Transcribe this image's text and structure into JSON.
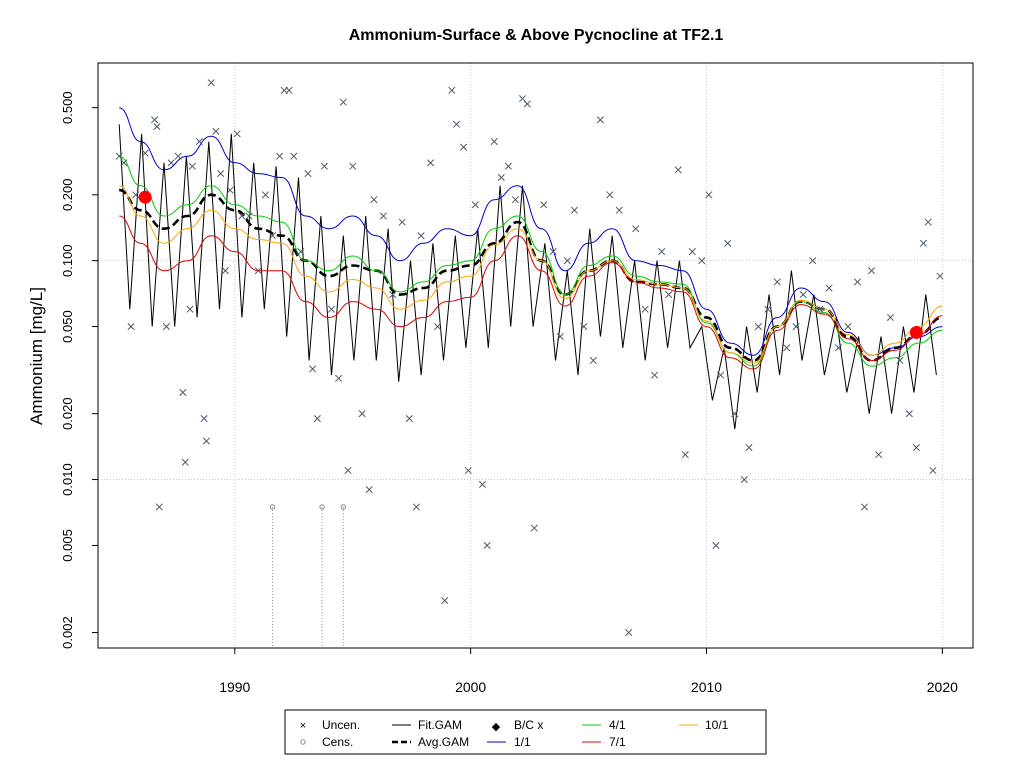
{
  "chart_data": {
    "type": "scatter",
    "title": "Ammonium-Surface & Above Pycnocline at TF2.1",
    "xlabel": "",
    "ylabel": "Ammonium [mg/L]",
    "x_ticks": [
      1990,
      2000,
      2010,
      2020
    ],
    "y_ticks": [
      "0.002",
      "0.005",
      "0.010",
      "0.020",
      "0.050",
      "0.100",
      "0.200",
      "0.500"
    ],
    "y_tick_values": [
      0.002,
      0.005,
      0.01,
      0.02,
      0.05,
      0.1,
      0.2,
      0.5
    ],
    "xlim": [
      1984.2,
      2021.3
    ],
    "ylim": [
      0.0017,
      0.8
    ],
    "y_scale": "log",
    "grid": true,
    "colors": {
      "uncen": "#4d5a6b",
      "cens": "#8a8a8a",
      "fit_gam": "#000000",
      "avg_gam": "#000000",
      "bc": "#ff0000",
      "s1_1": "#0000cc",
      "s4_1": "#00cc00",
      "s7_1": "#dd0000",
      "s10_1": "#ffa500"
    },
    "uncensored": [
      [
        1985.1,
        0.3
      ],
      [
        1985.3,
        0.28
      ],
      [
        1985.6,
        0.05
      ],
      [
        1985.8,
        0.2
      ],
      [
        1986.2,
        0.31
      ],
      [
        1986.6,
        0.44
      ],
      [
        1986.7,
        0.41
      ],
      [
        1986.8,
        0.0075
      ],
      [
        1987.1,
        0.05
      ],
      [
        1987.3,
        0.28
      ],
      [
        1987.6,
        0.3
      ],
      [
        1987.8,
        0.025
      ],
      [
        1987.9,
        0.012
      ],
      [
        1988.1,
        0.06
      ],
      [
        1988.2,
        0.27
      ],
      [
        1988.5,
        0.35
      ],
      [
        1988.7,
        0.019
      ],
      [
        1988.8,
        0.015
      ],
      [
        1989.0,
        0.65
      ],
      [
        1989.2,
        0.39
      ],
      [
        1989.4,
        0.25
      ],
      [
        1989.6,
        0.09
      ],
      [
        1989.8,
        0.21
      ],
      [
        1990.1,
        0.38
      ],
      [
        1990.3,
        0.16
      ],
      [
        1990.6,
        0.16
      ],
      [
        1991.0,
        0.09
      ],
      [
        1991.3,
        0.2
      ],
      [
        1991.6,
        0.13
      ],
      [
        1991.9,
        0.3
      ],
      [
        1992.1,
        0.6
      ],
      [
        1992.3,
        0.6
      ],
      [
        1992.5,
        0.3
      ],
      [
        1992.8,
        0.11
      ],
      [
        1993.1,
        0.25
      ],
      [
        1993.3,
        0.032
      ],
      [
        1993.5,
        0.019
      ],
      [
        1993.8,
        0.27
      ],
      [
        1994.1,
        0.06
      ],
      [
        1994.4,
        0.029
      ],
      [
        1994.6,
        0.53
      ],
      [
        1994.8,
        0.011
      ],
      [
        1995.0,
        0.27
      ],
      [
        1995.4,
        0.02
      ],
      [
        1995.7,
        0.009
      ],
      [
        1995.9,
        0.19
      ],
      [
        1996.3,
        0.16
      ],
      [
        1996.7,
        0.07
      ],
      [
        1997.1,
        0.15
      ],
      [
        1997.4,
        0.019
      ],
      [
        1997.7,
        0.0075
      ],
      [
        1997.9,
        0.13
      ],
      [
        1998.3,
        0.28
      ],
      [
        1998.6,
        0.05
      ],
      [
        1998.9,
        0.0028
      ],
      [
        1999.2,
        0.6
      ],
      [
        1999.4,
        0.42
      ],
      [
        1999.7,
        0.33
      ],
      [
        1999.9,
        0.011
      ],
      [
        2000.2,
        0.18
      ],
      [
        2000.5,
        0.0095
      ],
      [
        2000.7,
        0.005
      ],
      [
        2001.0,
        0.35
      ],
      [
        2001.3,
        0.24
      ],
      [
        2001.6,
        0.27
      ],
      [
        2001.9,
        0.19
      ],
      [
        2002.2,
        0.55
      ],
      [
        2002.4,
        0.52
      ],
      [
        2002.7,
        0.006
      ],
      [
        2003.1,
        0.18
      ],
      [
        2003.5,
        0.11
      ],
      [
        2003.8,
        0.045
      ],
      [
        2004.1,
        0.1
      ],
      [
        2004.4,
        0.17
      ],
      [
        2004.8,
        0.05
      ],
      [
        2005.2,
        0.035
      ],
      [
        2005.5,
        0.44
      ],
      [
        2005.9,
        0.2
      ],
      [
        2006.3,
        0.17
      ],
      [
        2006.7,
        0.002
      ],
      [
        2007.0,
        0.14
      ],
      [
        2007.4,
        0.06
      ],
      [
        2007.8,
        0.03
      ],
      [
        2008.1,
        0.11
      ],
      [
        2008.4,
        0.07
      ],
      [
        2008.8,
        0.26
      ],
      [
        2009.1,
        0.013
      ],
      [
        2009.4,
        0.11
      ],
      [
        2009.8,
        0.1
      ],
      [
        2010.1,
        0.2
      ],
      [
        2010.4,
        0.005
      ],
      [
        2010.6,
        0.03
      ],
      [
        2010.9,
        0.12
      ],
      [
        2011.2,
        0.02
      ],
      [
        2011.6,
        0.01
      ],
      [
        2011.8,
        0.014
      ],
      [
        2012.2,
        0.05
      ],
      [
        2012.6,
        0.06
      ],
      [
        2013.0,
        0.08
      ],
      [
        2013.4,
        0.04
      ],
      [
        2013.8,
        0.05
      ],
      [
        2014.1,
        0.07
      ],
      [
        2014.5,
        0.1
      ],
      [
        2014.8,
        0.06
      ],
      [
        2015.2,
        0.075
      ],
      [
        2015.6,
        0.04
      ],
      [
        2016.0,
        0.05
      ],
      [
        2016.4,
        0.08
      ],
      [
        2016.7,
        0.0075
      ],
      [
        2017.0,
        0.09
      ],
      [
        2017.3,
        0.013
      ],
      [
        2017.8,
        0.055
      ],
      [
        2018.2,
        0.035
      ],
      [
        2018.6,
        0.02
      ],
      [
        2018.9,
        0.014
      ],
      [
        2019.2,
        0.12
      ],
      [
        2019.4,
        0.15
      ],
      [
        2019.6,
        0.011
      ],
      [
        2019.9,
        0.085
      ]
    ],
    "censored": [
      [
        1991.6,
        0.0075
      ],
      [
        1993.7,
        0.0075
      ],
      [
        1994.6,
        0.0075
      ]
    ],
    "bc_points": [
      [
        1986.2,
        0.195
      ],
      [
        2018.9,
        0.047
      ]
    ],
    "series": [
      {
        "name": "Avg.GAM",
        "x": [
          1985.1,
          1986,
          1987,
          1988,
          1989,
          1990,
          1991,
          1992,
          1993,
          1994,
          1995,
          1996,
          1997,
          1998,
          1999,
          2000,
          2001,
          2002,
          2003,
          2004,
          2005,
          2006,
          2007,
          2008,
          2009,
          2010,
          2011,
          2012,
          2013,
          2014,
          2015,
          2016,
          2017,
          2018,
          2019,
          2020
        ],
        "values": [
          0.21,
          0.17,
          0.14,
          0.16,
          0.2,
          0.17,
          0.14,
          0.13,
          0.1,
          0.085,
          0.095,
          0.09,
          0.07,
          0.075,
          0.09,
          0.095,
          0.12,
          0.15,
          0.1,
          0.07,
          0.09,
          0.1,
          0.08,
          0.078,
          0.075,
          0.055,
          0.04,
          0.035,
          0.05,
          0.065,
          0.06,
          0.045,
          0.035,
          0.04,
          0.046,
          0.055
        ]
      },
      {
        "name": "1/1",
        "x": [
          1985.1,
          1986,
          1987,
          1988,
          1989,
          1990,
          1991,
          1992,
          1993,
          1994,
          1995,
          1996,
          1997,
          1998,
          1999,
          2000,
          2001,
          2002,
          2003,
          2004,
          2005,
          2006,
          2007,
          2008,
          2009,
          2010,
          2011,
          2012,
          2013,
          2014,
          2015,
          2016,
          2017,
          2018,
          2019,
          2020
        ],
        "values": [
          0.5,
          0.35,
          0.26,
          0.3,
          0.37,
          0.28,
          0.25,
          0.24,
          0.16,
          0.14,
          0.16,
          0.13,
          0.1,
          0.12,
          0.14,
          0.13,
          0.19,
          0.22,
          0.14,
          0.09,
          0.12,
          0.14,
          0.1,
          0.095,
          0.09,
          0.06,
          0.042,
          0.037,
          0.055,
          0.075,
          0.065,
          0.047,
          0.037,
          0.04,
          0.045,
          0.05
        ]
      },
      {
        "name": "4/1",
        "x": [
          1985.1,
          1986,
          1987,
          1988,
          1989,
          1990,
          1991,
          1992,
          1993,
          1994,
          1995,
          1996,
          1997,
          1998,
          1999,
          2000,
          2001,
          2002,
          2003,
          2004,
          2005,
          2006,
          2007,
          2008,
          2009,
          2010,
          2011,
          2012,
          2013,
          2014,
          2015,
          2016,
          2017,
          2018,
          2019,
          2020
        ],
        "values": [
          0.3,
          0.22,
          0.16,
          0.18,
          0.22,
          0.18,
          0.16,
          0.15,
          0.1,
          0.09,
          0.105,
          0.09,
          0.072,
          0.08,
          0.095,
          0.1,
          0.14,
          0.16,
          0.11,
          0.07,
          0.095,
          0.105,
          0.085,
          0.08,
          0.078,
          0.052,
          0.038,
          0.033,
          0.05,
          0.065,
          0.058,
          0.042,
          0.033,
          0.036,
          0.042,
          0.048
        ]
      },
      {
        "name": "7/1",
        "x": [
          1985.1,
          1986,
          1987,
          1988,
          1989,
          1990,
          1991,
          1992,
          1993,
          1994,
          1995,
          1996,
          1997,
          1998,
          1999,
          2000,
          2001,
          2002,
          2003,
          2004,
          2005,
          2006,
          2007,
          2008,
          2009,
          2010,
          2011,
          2012,
          2013,
          2014,
          2015,
          2016,
          2017,
          2018,
          2019,
          2020
        ],
        "values": [
          0.16,
          0.12,
          0.09,
          0.1,
          0.13,
          0.11,
          0.09,
          0.09,
          0.065,
          0.055,
          0.065,
          0.06,
          0.05,
          0.055,
          0.065,
          0.068,
          0.1,
          0.13,
          0.09,
          0.062,
          0.085,
          0.098,
          0.08,
          0.075,
          0.072,
          0.05,
          0.036,
          0.032,
          0.048,
          0.063,
          0.057,
          0.044,
          0.035,
          0.039,
          0.046,
          0.056
        ]
      },
      {
        "name": "10/1",
        "x": [
          1985.1,
          1986,
          1987,
          1988,
          1989,
          1990,
          1991,
          1992,
          1993,
          1994,
          1995,
          1996,
          1997,
          1998,
          1999,
          2000,
          2001,
          2002,
          2003,
          2004,
          2005,
          2006,
          2007,
          2008,
          2009,
          2010,
          2011,
          2012,
          2013,
          2014,
          2015,
          2016,
          2017,
          2018,
          2019,
          2020
        ],
        "values": [
          0.22,
          0.16,
          0.12,
          0.14,
          0.17,
          0.14,
          0.125,
          0.12,
          0.085,
          0.072,
          0.082,
          0.075,
          0.06,
          0.066,
          0.08,
          0.085,
          0.118,
          0.14,
          0.1,
          0.067,
          0.09,
          0.1,
          0.082,
          0.078,
          0.075,
          0.053,
          0.038,
          0.034,
          0.05,
          0.066,
          0.06,
          0.046,
          0.037,
          0.042,
          0.05,
          0.062
        ]
      }
    ],
    "fit_gam": {
      "name": "Fit.GAM",
      "peaks": [
        0.42,
        0.38,
        0.28,
        0.3,
        0.35,
        0.38,
        0.28,
        0.27,
        0.24,
        0.16,
        0.13,
        0.16,
        0.14,
        0.1,
        0.12,
        0.13,
        0.14,
        0.22,
        0.22,
        0.12,
        0.09,
        0.14,
        0.13,
        0.1,
        0.1,
        0.1,
        0.05,
        0.04,
        0.05,
        0.07,
        0.09,
        0.07,
        0.055,
        0.045,
        0.045,
        0.05,
        0.07
      ],
      "troughs": [
        0.06,
        0.05,
        0.05,
        0.055,
        0.06,
        0.055,
        0.06,
        0.045,
        0.035,
        0.03,
        0.035,
        0.035,
        0.028,
        0.03,
        0.035,
        0.04,
        0.04,
        0.05,
        0.05,
        0.035,
        0.03,
        0.045,
        0.04,
        0.035,
        0.04,
        0.04,
        0.023,
        0.017,
        0.025,
        0.03,
        0.035,
        0.03,
        0.025,
        0.02,
        0.02,
        0.025,
        0.03
      ]
    },
    "legend": {
      "col1": [
        "Uncen.",
        "Cens."
      ],
      "col2": [
        "Fit.GAM",
        "Avg.GAM"
      ],
      "col3": [
        "B/C x",
        "1/1"
      ],
      "col4": [
        "4/1",
        "7/1"
      ],
      "col5": [
        "10/1"
      ]
    }
  }
}
